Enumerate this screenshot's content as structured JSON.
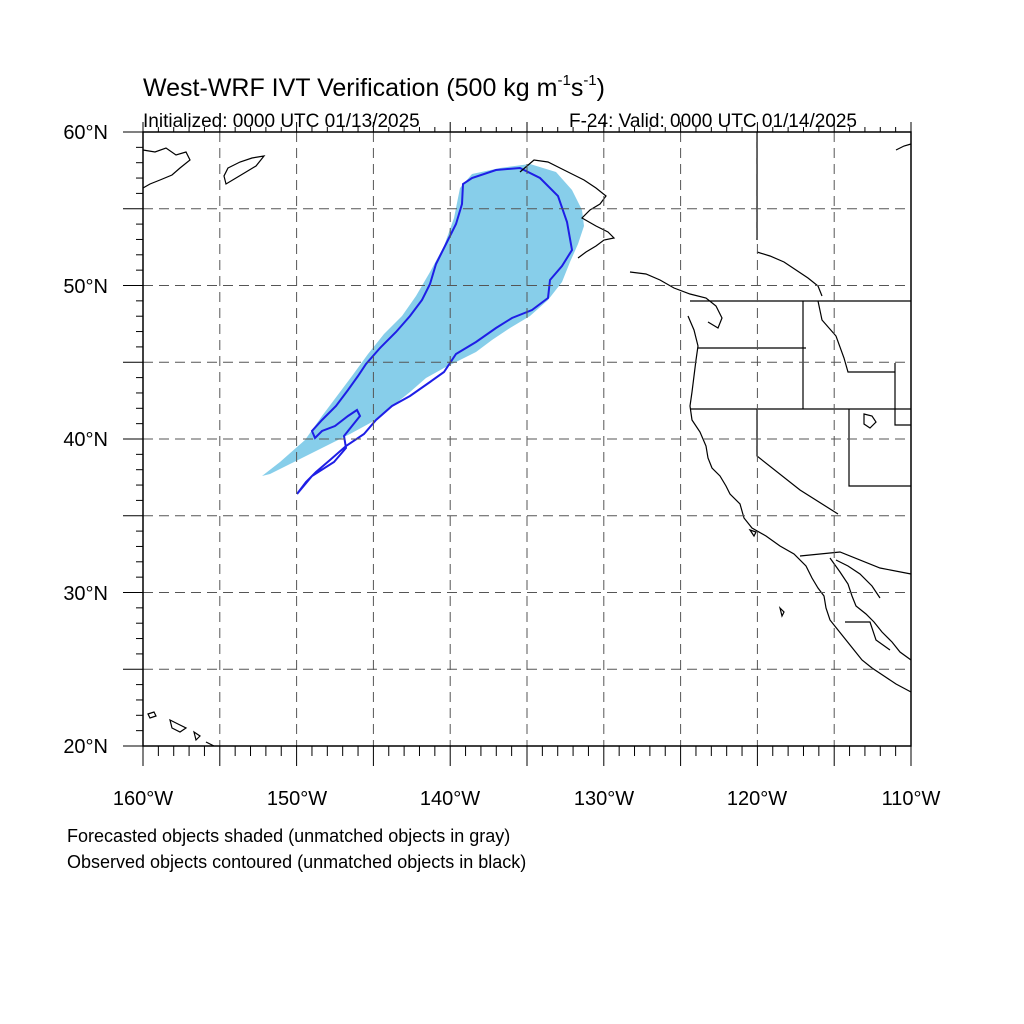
{
  "header": {
    "title_main": "West-WRF IVT Verification (500 kg m",
    "title_exp1": "-1",
    "title_mid": "s",
    "title_exp2": "-1",
    "title_end": ")",
    "initialized": "Initialized: 0000 UTC 01/13/2025",
    "valid": "F-24: Valid: 0000 UTC 01/14/2025"
  },
  "axes": {
    "lon_labels": [
      "160°W",
      "150°W",
      "140°W",
      "130°W",
      "120°W",
      "110°W"
    ],
    "lat_labels": [
      "60°N",
      "50°N",
      "40°N",
      "30°N",
      "20°N"
    ],
    "lon_range": [
      -160,
      -110
    ],
    "lat_range": [
      20,
      60
    ],
    "grid": "dashed, every 5 degrees"
  },
  "legend": {
    "line1": "Forecasted objects shaded (unmatched objects in gray)",
    "line2": "Observed objects contoured (unmatched objects in black)"
  },
  "colors": {
    "forecast_fill": "#87ceea",
    "observed_contour": "#1e1ee6",
    "coastline": "#000000",
    "grid": "#555555"
  }
}
